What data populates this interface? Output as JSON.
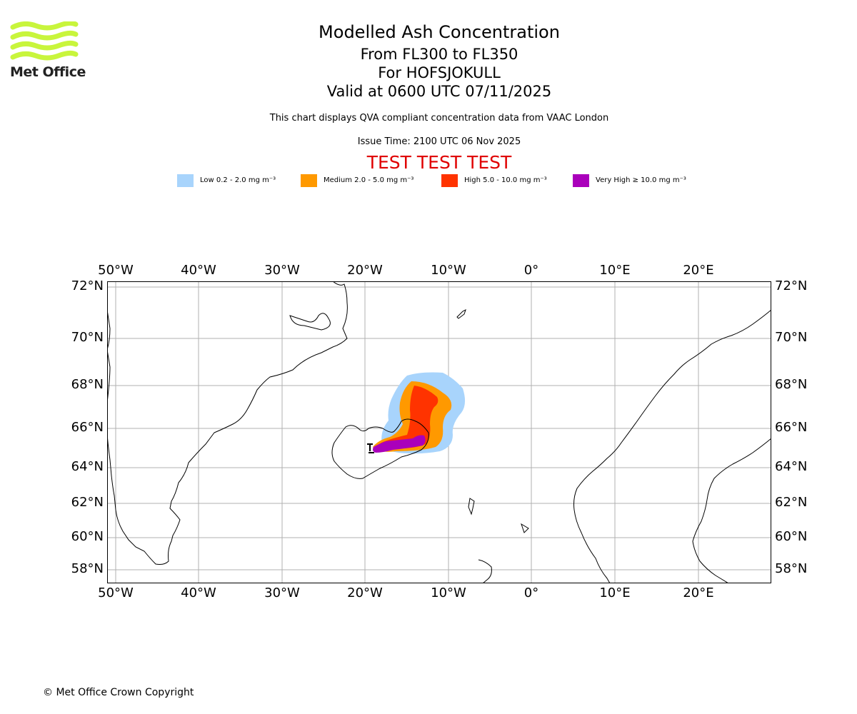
{
  "header": {
    "logo_text": "Met Office",
    "title": "Modelled Ash Concentration",
    "flight_levels": "From FL300 to FL350",
    "volcano": "For HOFSJOKULL",
    "valid_time": "Valid at 0600 UTC 07/11/2025",
    "description": "This chart displays QVA compliant concentration data from VAAC London",
    "issue_time": "Issue Time: 2100 UTC 06 Nov 2025",
    "test_banner": "TEST TEST TEST"
  },
  "legend": [
    {
      "label": "Low 0.2 - 2.0 mg m⁻³",
      "color": "#a8d4fc"
    },
    {
      "label": "Medium 2.0 - 5.0 mg m⁻³",
      "color": "#ff9900"
    },
    {
      "label": "High 5.0 - 10.0 mg m⁻³",
      "color": "#ff3300"
    },
    {
      "label": "Very High ≥ 10.0 mg m⁻³",
      "color": "#aa00bb"
    }
  ],
  "map": {
    "lon_labels": [
      "50°W",
      "40°W",
      "30°W",
      "20°W",
      "10°W",
      "0°",
      "10°E",
      "20°E"
    ],
    "lat_labels": [
      "72°N",
      "70°N",
      "68°N",
      "66°N",
      "64°N",
      "62°N",
      "60°N",
      "58°N"
    ],
    "gridline_color": "#b0b0b0"
  },
  "footer": {
    "copyright": "© Met Office Crown Copyright"
  }
}
